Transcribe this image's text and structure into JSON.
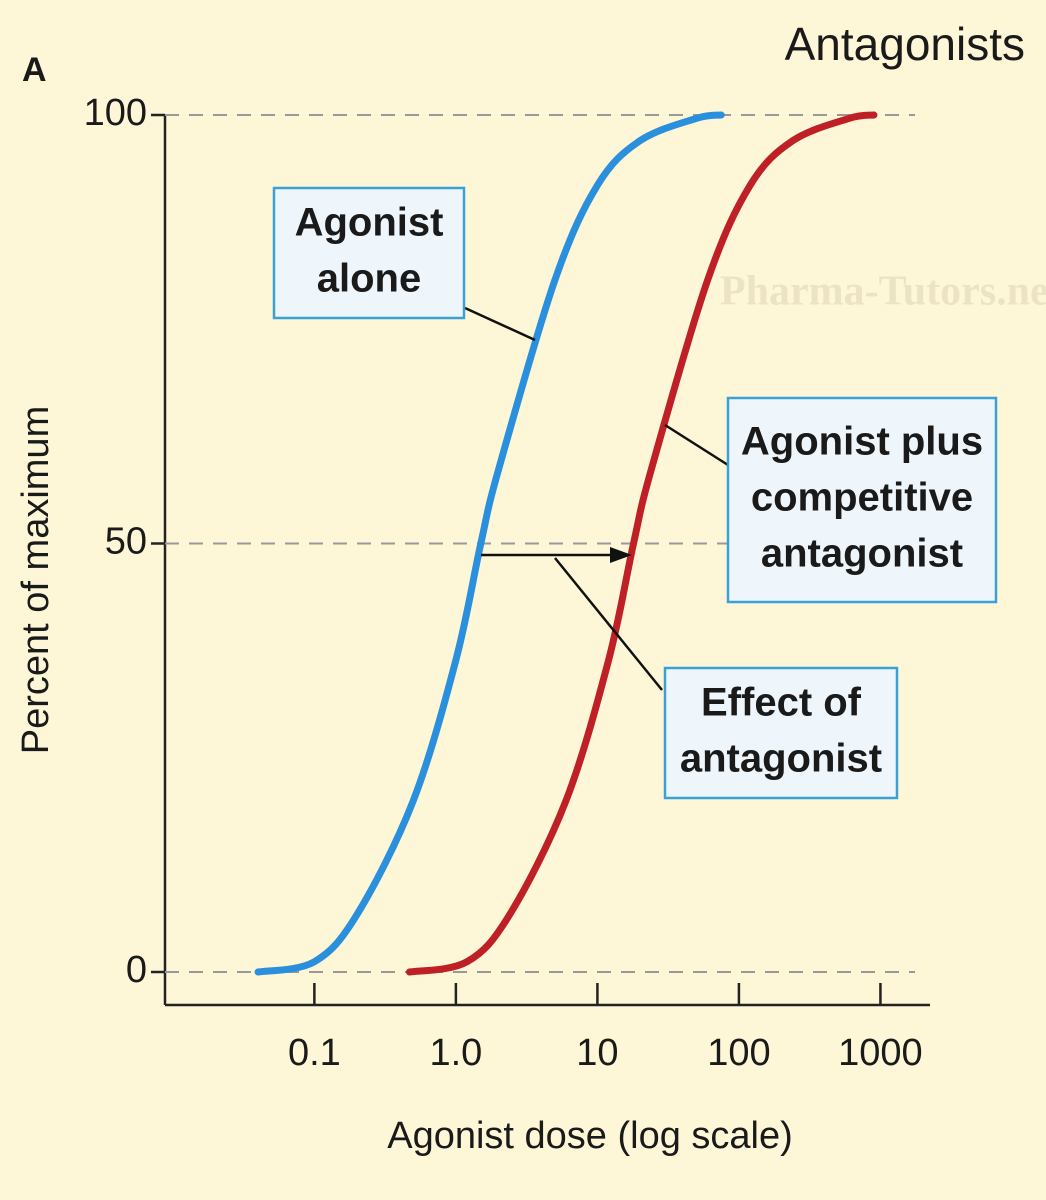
{
  "chart_data": {
    "type": "line",
    "panel_label": "A",
    "title": "Antagonists",
    "watermark": "Pharma-Tutors.net",
    "y_label": "Percent of maximum",
    "x_label": "Agonist dose (log scale)",
    "xscale": "log",
    "xlim": [
      0.0088,
      2240
    ],
    "ylim": [
      -3.85,
      100
    ],
    "xticks": [
      0.1,
      {
        "value": 1,
        "label": "1.0"
      },
      10,
      100,
      1000
    ],
    "yticks": [
      0,
      50,
      100
    ],
    "grid": true,
    "series": [
      {
        "color": "#2a8fdc",
        "x": [
          0.04,
          0.1,
          0.2,
          0.5,
          1,
          1.5,
          2,
          5,
          10,
          20,
          50,
          75
        ],
        "values": [
          0,
          1.2,
          6.7,
          20,
          36.4,
          50,
          58.6,
          80.7,
          91.8,
          97,
          99.6,
          100
        ]
      },
      {
        "color": "#bf2026",
        "x": [
          0.47,
          1.2,
          2.4,
          6,
          12,
          18,
          24,
          60,
          120,
          240,
          600,
          900
        ],
        "values": [
          0,
          1.2,
          6.7,
          20,
          36.4,
          50,
          58.6,
          80.7,
          91.8,
          97,
          99.6,
          100
        ]
      }
    ],
    "annotations": [
      {
        "lines": [
          "Agonist",
          "alone"
        ]
      },
      {
        "lines": [
          "Agonist plus",
          "competitive",
          "antagonist"
        ]
      },
      {
        "lines": [
          "Effect of",
          "antagonist"
        ]
      }
    ]
  }
}
